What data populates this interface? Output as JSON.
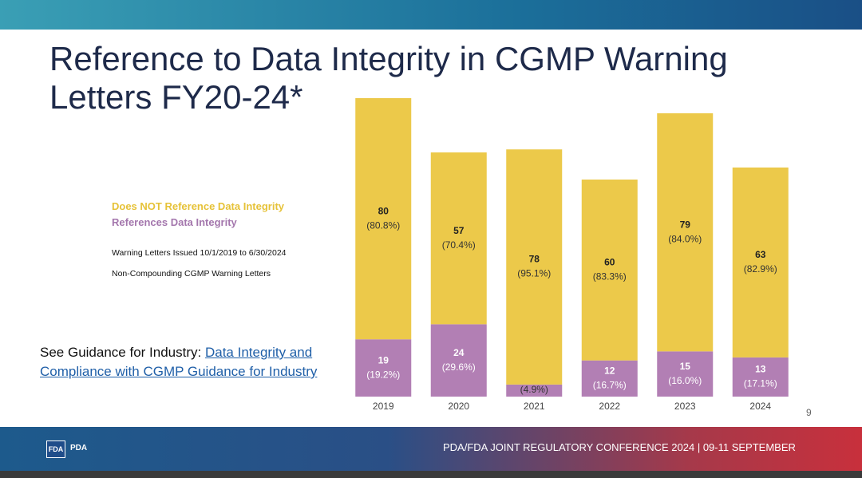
{
  "chart_data": {
    "type": "stacked-bar",
    "title": "Reference to Data Integrity in CGMP Warning Letters FY20-24*",
    "categories": [
      "2019",
      "2020",
      "2021",
      "2022",
      "2023",
      "2024"
    ],
    "series": [
      {
        "name": "References Data Integrity",
        "color": "#b27fb4",
        "values": [
          19,
          24,
          4,
          12,
          15,
          13
        ],
        "percent_labels": [
          "(19.2%)",
          "(29.6%)",
          "(4.9%)",
          "(16.7%)",
          "(16.0%)",
          "(17.1%)"
        ]
      },
      {
        "name": "Does NOT Reference Data Integrity",
        "color": "#ecc94a",
        "values": [
          80,
          57,
          78,
          60,
          79,
          63
        ],
        "percent_labels": [
          "(80.8%)",
          "(70.4%)",
          "(95.1%)",
          "(83.3%)",
          "(84.0%)",
          "(82.9%)"
        ]
      }
    ],
    "notes": [
      "Warning Letters Issued 10/1/2019 to 6/30/2024",
      "Non-Compounding CGMP Warning Letters"
    ]
  },
  "guidance": {
    "prefix": "See Guidance for Industry:",
    "link": "Data Integrity and Compliance with CGMP Guidance for Industry"
  },
  "page_number": "9",
  "footer": {
    "logos": [
      "FDA",
      "PDA"
    ],
    "text": "PDA/FDA JOINT REGULATORY CONFERENCE 2024 | 09-11 SEPTEMBER"
  }
}
